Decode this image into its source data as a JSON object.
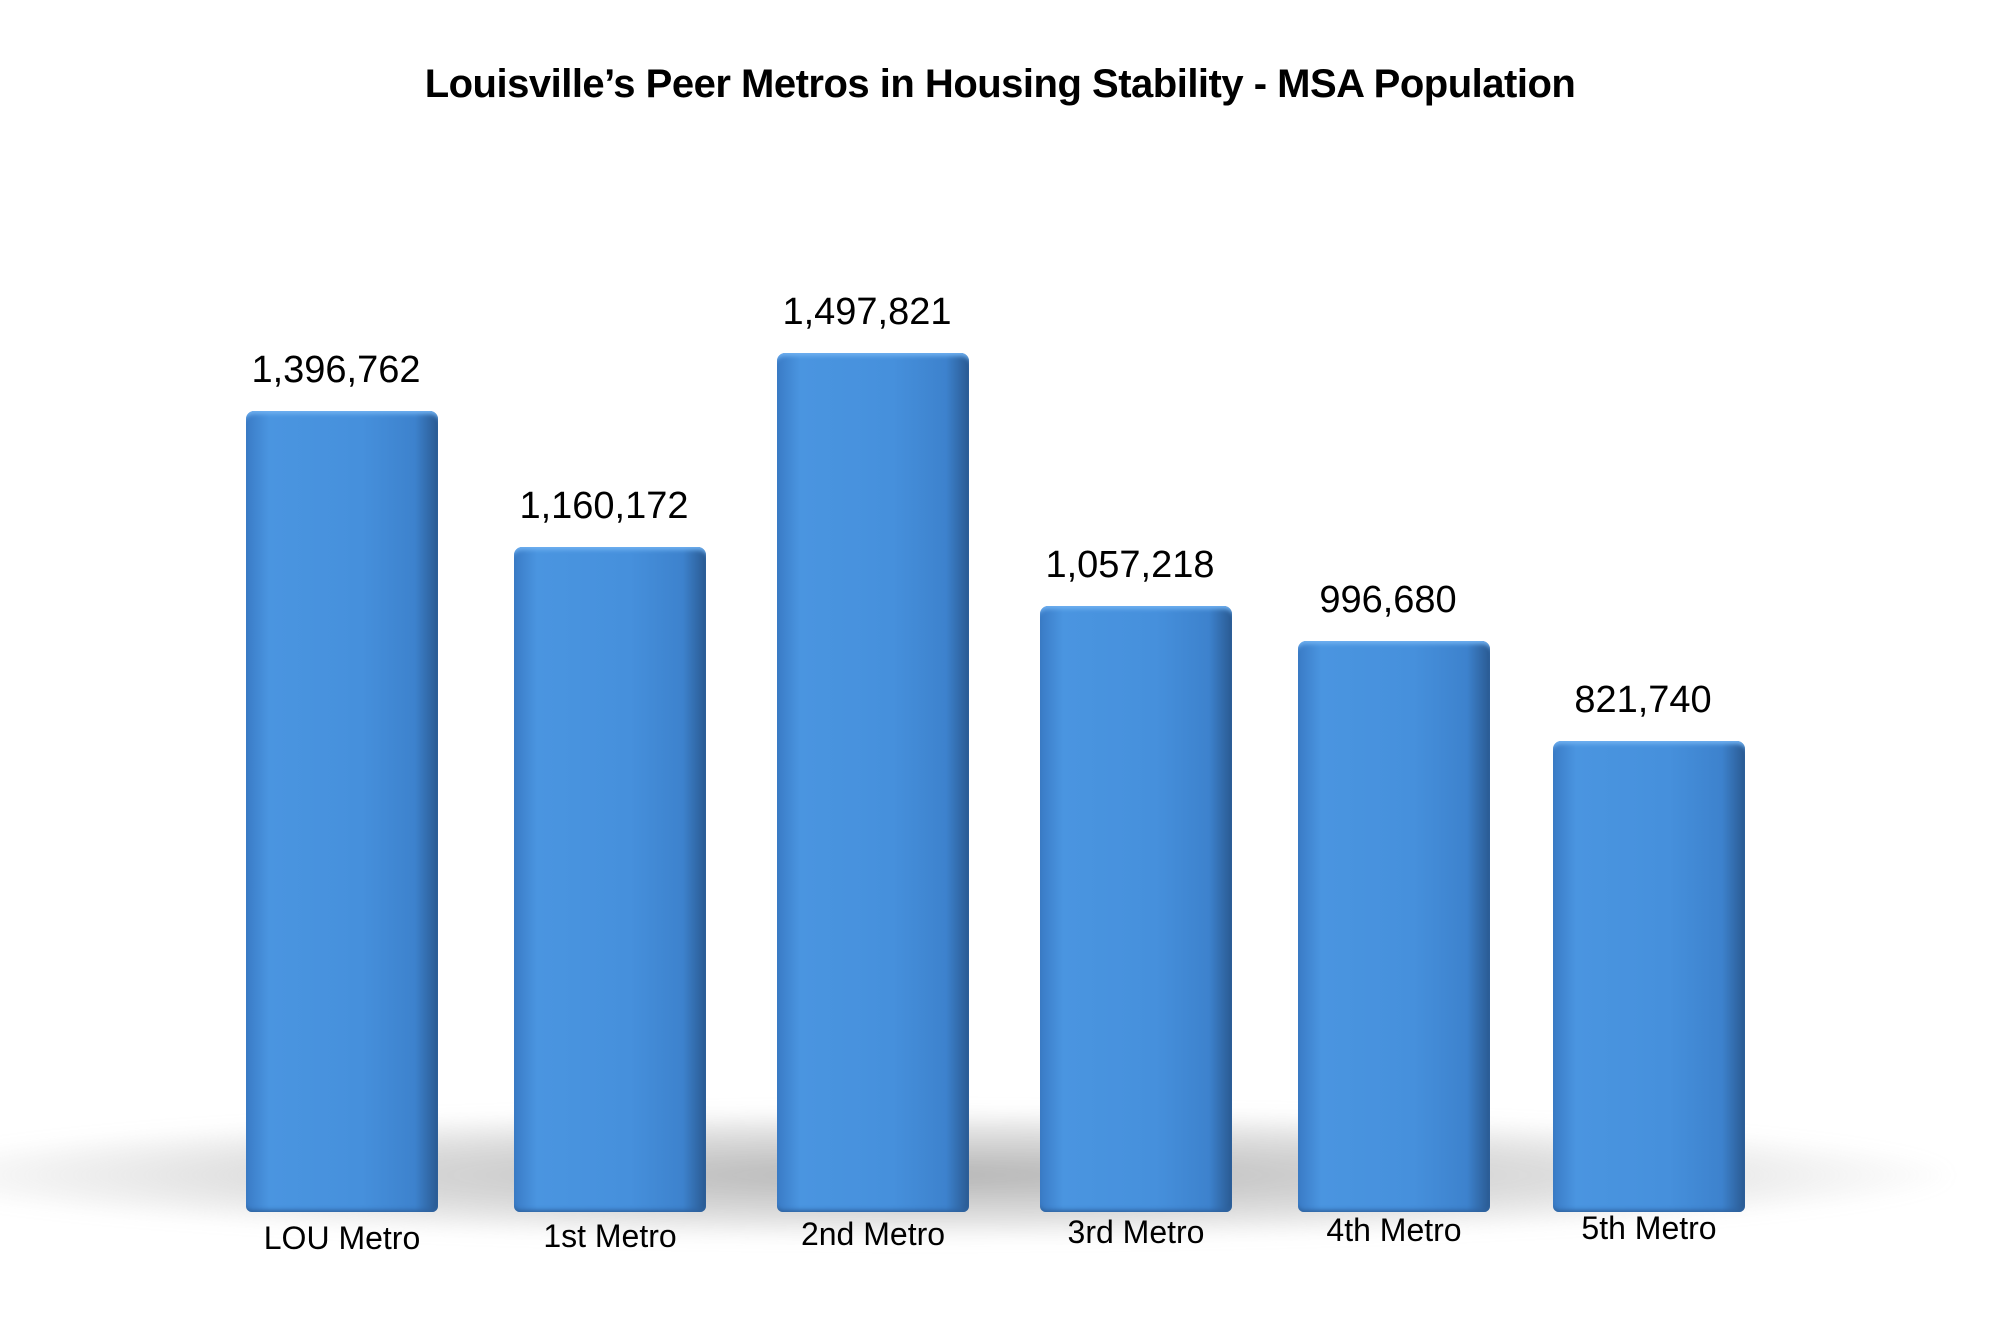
{
  "chart_data": {
    "type": "bar",
    "title": "Louisville’s Peer Metros in Housing Stability - MSA Population",
    "categories": [
      "LOU Metro",
      "1st Metro",
      "2nd Metro",
      "3rd Metro",
      "4th Metro",
      "5th Metro"
    ],
    "values": [
      1396762,
      1160172,
      1497821,
      1057218,
      996680,
      821740
    ],
    "data_labels": [
      "1,396,762",
      "1,160,172",
      "1,497,821",
      "1,057,218",
      "996,680",
      "821,740"
    ],
    "xlabel": "",
    "ylabel": "",
    "grid": false,
    "legend": "none",
    "bar_color": "#4690dc"
  }
}
